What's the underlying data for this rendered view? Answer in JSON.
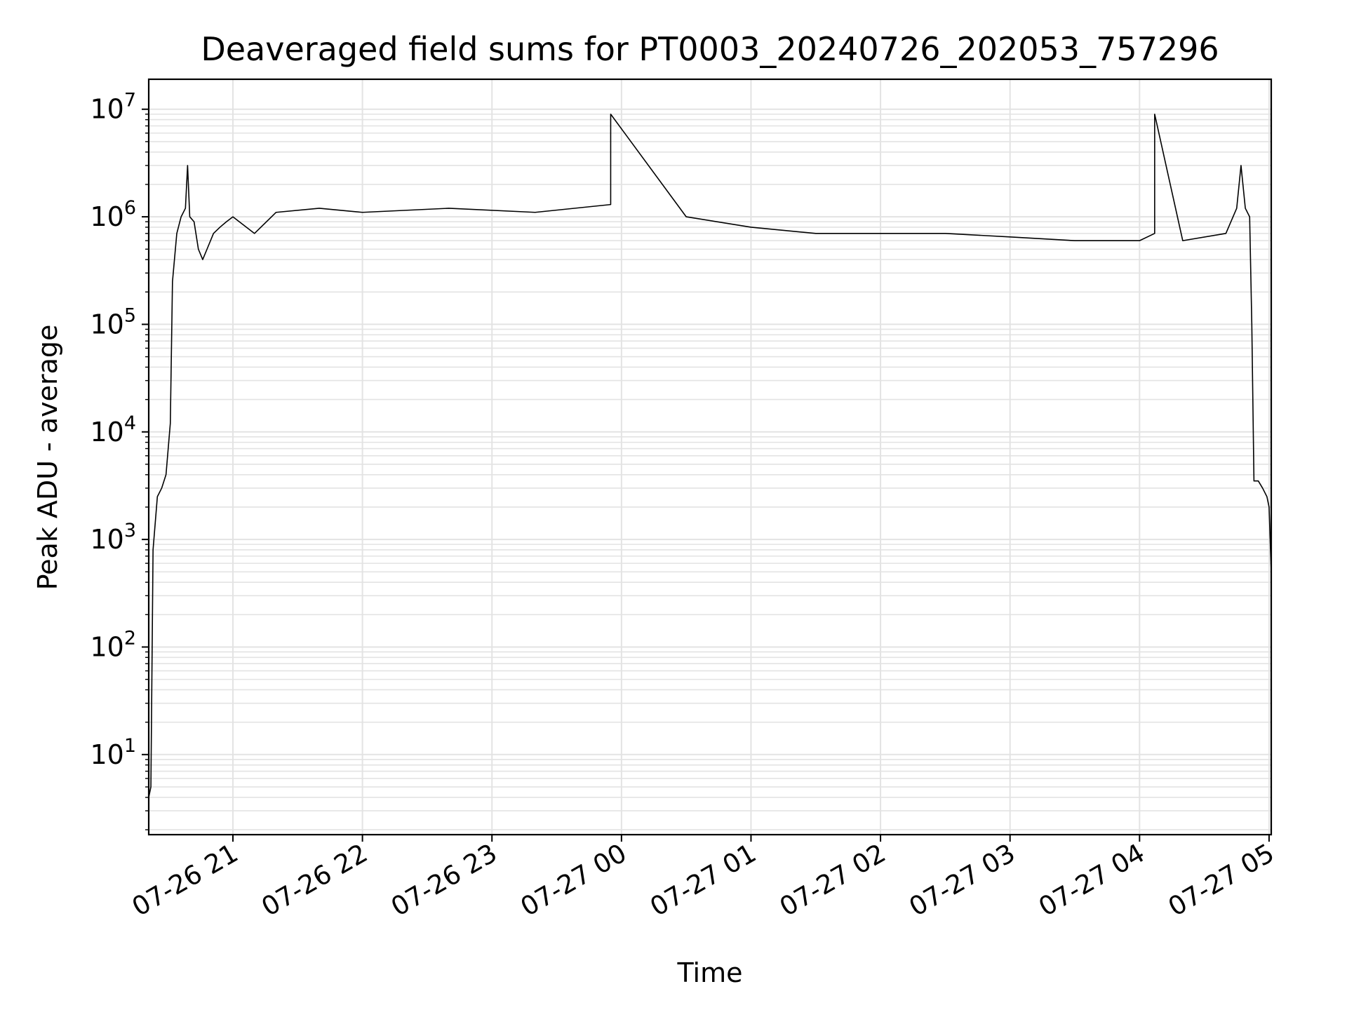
{
  "chart_data": {
    "type": "line",
    "title": "Deaveraged field sums for PT0003_20240726_202053_757296",
    "xlabel": "Time",
    "ylabel": "Peak ADU - average",
    "x_ticks": [
      "07-26 21",
      "07-26 22",
      "07-26 23",
      "07-27 00",
      "07-27 01",
      "07-27 02",
      "07-27 03",
      "07-27 04",
      "07-27 05"
    ],
    "y_scale": "log",
    "y_ticks": [
      {
        "base": "10",
        "exp": "1"
      },
      {
        "base": "10",
        "exp": "2"
      },
      {
        "base": "10",
        "exp": "3"
      },
      {
        "base": "10",
        "exp": "4"
      },
      {
        "base": "10",
        "exp": "5"
      },
      {
        "base": "10",
        "exp": "6"
      },
      {
        "base": "10",
        "exp": "7"
      }
    ],
    "xlim": [
      "2024-07-26 20:21",
      "2024-07-27 05:01"
    ],
    "ylim": [
      1.8,
      19000000
    ],
    "grid": true,
    "line_color": "#000000",
    "series": [
      {
        "x": [
          "2024-07-26 20:21",
          "2024-07-26 20:22",
          "2024-07-26 20:23",
          "2024-07-26 20:25",
          "2024-07-26 20:27",
          "2024-07-26 20:29",
          "2024-07-26 20:31",
          "2024-07-26 20:32",
          "2024-07-26 20:34",
          "2024-07-26 20:36",
          "2024-07-26 20:38",
          "2024-07-26 20:39",
          "2024-07-26 20:40",
          "2024-07-26 20:42",
          "2024-07-26 20:44",
          "2024-07-26 20:46",
          "2024-07-26 20:48",
          "2024-07-26 20:51",
          "2024-07-26 20:54",
          "2024-07-26 20:57",
          "2024-07-26 21:00",
          "2024-07-26 21:10",
          "2024-07-26 21:20",
          "2024-07-26 21:40",
          "2024-07-26 22:00",
          "2024-07-26 22:40",
          "2024-07-26 23:20",
          "2024-07-26 23:55",
          "2024-07-26 23:55",
          "2024-07-27 00:30",
          "2024-07-27 01:00",
          "2024-07-27 01:30",
          "2024-07-27 02:00",
          "2024-07-27 02:30",
          "2024-07-27 03:00",
          "2024-07-27 03:30",
          "2024-07-27 04:00",
          "2024-07-27 04:07",
          "2024-07-27 04:07",
          "2024-07-27 04:20",
          "2024-07-27 04:40",
          "2024-07-27 04:45",
          "2024-07-27 04:47",
          "2024-07-27 04:49",
          "2024-07-27 04:51",
          "2024-07-27 04:52",
          "2024-07-27 04:53",
          "2024-07-27 04:55",
          "2024-07-27 04:57",
          "2024-07-27 04:59",
          "2024-07-27 05:00",
          "2024-07-27 05:01"
        ],
        "values": [
          4,
          5,
          800,
          2500,
          3000,
          4000,
          12000,
          250000,
          700000,
          1000000,
          1200000,
          3000000,
          1000000,
          900000,
          500000,
          400000,
          500000,
          700000,
          800000,
          900000,
          1000000,
          700000,
          1100000,
          1200000,
          1100000,
          1200000,
          1100000,
          1300000,
          9000000,
          1000000,
          800000,
          700000,
          700000,
          700000,
          650000,
          600000,
          600000,
          700000,
          9000000,
          600000,
          700000,
          1200000,
          3000000,
          1200000,
          1000000,
          100000,
          3500,
          3500,
          3000,
          2500,
          2000,
          500
        ]
      }
    ]
  }
}
